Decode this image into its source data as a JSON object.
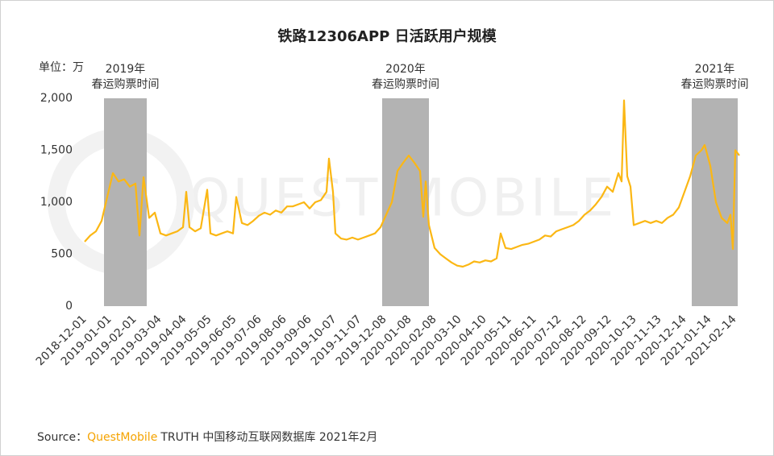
{
  "chart_data": {
    "type": "line",
    "title": "铁路12306APP 日活跃用户规模",
    "y_unit": "单位：万",
    "watermark": "QUEST MOBILE",
    "xlim": [
      "2018-12-01",
      "2021-02-20"
    ],
    "xticks": [
      "2018-12-01",
      "2019-01-01",
      "2019-02-01",
      "2019-03-04",
      "2019-04-04",
      "2019-05-05",
      "2019-06-05",
      "2019-07-06",
      "2019-08-06",
      "2019-09-06",
      "2019-10-07",
      "2019-11-07",
      "2019-12-08",
      "2020-01-08",
      "2020-02-08",
      "2020-03-10",
      "2020-04-10",
      "2020-05-11",
      "2020-06-11",
      "2020-07-12",
      "2020-08-12",
      "2020-09-12",
      "2020-10-13",
      "2020-11-13",
      "2020-12-14",
      "2021-01-14",
      "2021-02-14"
    ],
    "ylim": [
      0,
      2000
    ],
    "yticks": [
      0,
      500,
      {
        "value": 1000,
        "label": "1,000"
      },
      {
        "value": 1500,
        "label": "1,500"
      },
      {
        "value": 2000,
        "label": "2,000"
      }
    ],
    "bands": [
      {
        "year": "2019年",
        "label": "春运购票时间",
        "start": "2018-12-25",
        "end": "2019-02-16"
      },
      {
        "year": "2020年",
        "label": "春运购票时间",
        "start": "2019-12-05",
        "end": "2020-02-01"
      },
      {
        "year": "2021年",
        "label": "春运购票时间",
        "start": "2020-12-23",
        "end": "2021-02-18"
      }
    ],
    "band_color": "#b3b3b3",
    "series": [
      {
        "color": "#fbb714",
        "x": [
          "2018-12-01",
          "2018-12-08",
          "2018-12-15",
          "2018-12-22",
          "2018-12-29",
          "2019-01-05",
          "2019-01-12",
          "2019-01-19",
          "2019-01-26",
          "2019-02-02",
          "2019-02-07",
          "2019-02-12",
          "2019-02-19",
          "2019-02-26",
          "2019-03-05",
          "2019-03-12",
          "2019-03-19",
          "2019-03-26",
          "2019-04-02",
          "2019-04-06",
          "2019-04-10",
          "2019-04-17",
          "2019-04-24",
          "2019-05-02",
          "2019-05-06",
          "2019-05-13",
          "2019-05-20",
          "2019-05-27",
          "2019-06-03",
          "2019-06-07",
          "2019-06-14",
          "2019-06-21",
          "2019-06-28",
          "2019-07-05",
          "2019-07-12",
          "2019-07-19",
          "2019-07-26",
          "2019-08-02",
          "2019-08-09",
          "2019-08-16",
          "2019-08-23",
          "2019-08-30",
          "2019-09-06",
          "2019-09-13",
          "2019-09-20",
          "2019-09-27",
          "2019-09-30",
          "2019-10-05",
          "2019-10-08",
          "2019-10-15",
          "2019-10-22",
          "2019-10-29",
          "2019-11-05",
          "2019-11-12",
          "2019-11-19",
          "2019-11-26",
          "2019-12-03",
          "2019-12-10",
          "2019-12-17",
          "2019-12-24",
          "2019-12-31",
          "2020-01-07",
          "2020-01-14",
          "2020-01-21",
          "2020-01-25",
          "2020-01-28",
          "2020-02-01",
          "2020-02-08",
          "2020-02-15",
          "2020-02-22",
          "2020-02-29",
          "2020-03-07",
          "2020-03-14",
          "2020-03-21",
          "2020-03-28",
          "2020-04-04",
          "2020-04-11",
          "2020-04-18",
          "2020-04-25",
          "2020-04-30",
          "2020-05-06",
          "2020-05-13",
          "2020-05-20",
          "2020-05-27",
          "2020-06-03",
          "2020-06-10",
          "2020-06-17",
          "2020-06-24",
          "2020-07-01",
          "2020-07-08",
          "2020-07-15",
          "2020-07-22",
          "2020-07-29",
          "2020-08-05",
          "2020-08-12",
          "2020-08-19",
          "2020-08-26",
          "2020-09-02",
          "2020-09-09",
          "2020-09-16",
          "2020-09-23",
          "2020-09-27",
          "2020-09-30",
          "2020-10-04",
          "2020-10-08",
          "2020-10-12",
          "2020-10-19",
          "2020-10-26",
          "2020-11-02",
          "2020-11-09",
          "2020-11-16",
          "2020-11-23",
          "2020-11-30",
          "2020-12-07",
          "2020-12-14",
          "2020-12-21",
          "2020-12-28",
          "2021-01-04",
          "2021-01-08",
          "2021-01-15",
          "2021-01-22",
          "2021-01-29",
          "2021-02-05",
          "2021-02-09",
          "2021-02-12",
          "2021-02-15",
          "2021-02-20"
        ],
        "values": [
          620,
          680,
          720,
          820,
          1050,
          1280,
          1200,
          1220,
          1150,
          1180,
          680,
          1240,
          850,
          900,
          700,
          680,
          700,
          720,
          760,
          1100,
          760,
          720,
          750,
          1120,
          700,
          680,
          700,
          720,
          700,
          1050,
          800,
          780,
          820,
          870,
          900,
          880,
          920,
          900,
          960,
          960,
          980,
          1000,
          940,
          1000,
          1020,
          1100,
          1420,
          1100,
          700,
          650,
          640,
          660,
          640,
          660,
          680,
          700,
          760,
          880,
          1000,
          1300,
          1380,
          1450,
          1380,
          1300,
          860,
          1200,
          780,
          560,
          500,
          460,
          420,
          390,
          380,
          400,
          430,
          420,
          440,
          430,
          460,
          700,
          560,
          550,
          570,
          590,
          600,
          620,
          640,
          680,
          670,
          720,
          740,
          760,
          780,
          820,
          880,
          920,
          980,
          1050,
          1150,
          1100,
          1280,
          1200,
          1980,
          1250,
          1150,
          780,
          800,
          820,
          800,
          820,
          800,
          850,
          880,
          950,
          1100,
          1250,
          1450,
          1500,
          1550,
          1350,
          1000,
          850,
          800,
          880,
          550,
          1500,
          1450
        ]
      }
    ],
    "source": {
      "prefix": "Source：",
      "brand": "QuestMobile",
      "rest": "TRUTH 中国移动互联网数据库 2021年2月"
    }
  }
}
